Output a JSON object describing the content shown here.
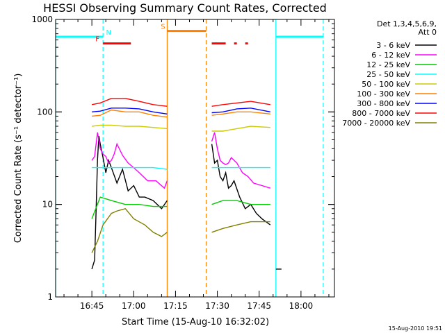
{
  "chart_data": {
    "type": "line",
    "title": "HESSI Observing Summary Count Rates, Corrected",
    "xlabel": "Start Time (15-Aug-10 16:32:02)",
    "ylabel": "Corrected Count Rate (s⁻¹ detector⁻¹)",
    "footer": "15-Aug-2010 19:51",
    "x_unit": "minutes after 16:32:02",
    "xlim": [
      0,
      100
    ],
    "ylim": [
      1,
      1000
    ],
    "yscale": "log",
    "x_ticks": [
      {
        "label": "16:45",
        "x": 13
      },
      {
        "label": "17:00",
        "x": 28
      },
      {
        "label": "17:15",
        "x": 43
      },
      {
        "label": "17:30",
        "x": 58
      },
      {
        "label": "17:45",
        "x": 73
      },
      {
        "label": "18:00",
        "x": 88
      }
    ],
    "y_ticks": [
      {
        "label": "1",
        "y": 1
      },
      {
        "label": "10",
        "y": 10
      },
      {
        "label": "100",
        "y": 100
      },
      {
        "label": "1000",
        "y": 1000
      }
    ],
    "legend_title": [
      "Det 1,3,4,5,6,9,",
      "Att 0"
    ],
    "legend_position": "right",
    "series": [
      {
        "name": "3 - 6 keV",
        "color": "#000000",
        "seg1": {
          "x": [
            13,
            14,
            14.5,
            15,
            15.5,
            16,
            17,
            18,
            19,
            20,
            22,
            24,
            26,
            28,
            30,
            32,
            35,
            38,
            40
          ],
          "y": [
            2,
            2.5,
            8,
            30,
            55,
            45,
            32,
            22,
            30,
            25,
            17,
            24,
            14,
            16,
            12,
            12,
            11,
            9,
            11
          ]
        },
        "seg2": {
          "x": [
            56,
            57,
            58,
            59,
            60,
            61,
            62,
            63,
            64,
            66,
            68,
            70,
            72,
            74,
            77
          ],
          "y": [
            45,
            28,
            30,
            20,
            18,
            22,
            15,
            16,
            18,
            12,
            9,
            10,
            8,
            7,
            6
          ]
        },
        "seg3": {
          "x": [
            79,
            80,
            81
          ],
          "y": [
            2,
            2,
            2
          ]
        }
      },
      {
        "name": "6 - 12 keV",
        "color": "#ff00ff",
        "seg1": {
          "x": [
            13,
            14,
            15,
            16,
            17,
            18,
            19,
            20,
            21,
            22,
            24,
            26,
            28,
            30,
            33,
            36,
            39,
            40
          ],
          "y": [
            30,
            33,
            60,
            40,
            35,
            33,
            28,
            30,
            35,
            45,
            34,
            28,
            25,
            22,
            18,
            18,
            15,
            18
          ]
        },
        "seg2": {
          "x": [
            56,
            57,
            58,
            59,
            60,
            61,
            62,
            63,
            65,
            67,
            69,
            71,
            74,
            77
          ],
          "y": [
            48,
            60,
            40,
            30,
            28,
            27,
            28,
            32,
            28,
            22,
            20,
            17,
            16,
            15
          ]
        }
      },
      {
        "name": "12 - 25 keV",
        "color": "#00cc00",
        "seg1": {
          "x": [
            13,
            16,
            20,
            25,
            30,
            35,
            40
          ],
          "y": [
            7,
            12,
            11,
            10,
            10,
            9.5,
            9.5
          ]
        },
        "seg2": {
          "x": [
            56,
            60,
            65,
            70,
            77
          ],
          "y": [
            10,
            11,
            11,
            10,
            10
          ]
        }
      },
      {
        "name": "25 - 50 keV",
        "color": "#00ffff",
        "seg1": {
          "x": [
            13,
            16,
            20,
            25,
            30,
            35,
            40
          ],
          "y": [
            25,
            25,
            25,
            25,
            25,
            25,
            24
          ]
        },
        "seg2": {
          "x": [
            56,
            60,
            65,
            70,
            77
          ],
          "y": [
            25,
            25,
            25,
            25,
            25
          ]
        }
      },
      {
        "name": "50 - 100 keV",
        "color": "#cccc00",
        "seg1": {
          "x": [
            13,
            16,
            20,
            25,
            30,
            35,
            40
          ],
          "y": [
            70,
            72,
            72,
            70,
            70,
            68,
            66
          ]
        },
        "seg2": {
          "x": [
            56,
            60,
            65,
            70,
            77
          ],
          "y": [
            62,
            62,
            66,
            70,
            68
          ]
        }
      },
      {
        "name": "100 - 300 keV",
        "color": "#ff8000",
        "seg1": {
          "x": [
            13,
            16,
            20,
            25,
            30,
            35,
            40
          ],
          "y": [
            90,
            92,
            105,
            100,
            100,
            92,
            88
          ]
        },
        "seg2": {
          "x": [
            56,
            60,
            65,
            70,
            77
          ],
          "y": [
            92,
            95,
            100,
            100,
            95
          ]
        }
      },
      {
        "name": "300 - 800 keV",
        "color": "#0000ff",
        "seg1": {
          "x": [
            13,
            16,
            20,
            25,
            30,
            35,
            40
          ],
          "y": [
            100,
            102,
            110,
            110,
            108,
            100,
            95
          ]
        },
        "seg2": {
          "x": [
            56,
            60,
            65,
            70,
            77
          ],
          "y": [
            98,
            100,
            108,
            110,
            100
          ]
        }
      },
      {
        "name": "800 - 7000 keV",
        "color": "#ff0000",
        "seg1": {
          "x": [
            13,
            16,
            20,
            25,
            30,
            35,
            40
          ],
          "y": [
            120,
            125,
            140,
            140,
            130,
            120,
            115
          ]
        },
        "seg2": {
          "x": [
            56,
            60,
            65,
            70,
            77
          ],
          "y": [
            115,
            120,
            125,
            130,
            120
          ]
        }
      },
      {
        "name": "7000 - 20000 keV",
        "color": "#808000",
        "seg1": {
          "x": [
            13,
            15,
            17,
            20,
            22,
            25,
            28,
            32,
            35,
            38,
            40
          ],
          "y": [
            3,
            4,
            6,
            8,
            8.5,
            9,
            7,
            6,
            5,
            4.5,
            5
          ]
        },
        "seg2": {
          "x": [
            56,
            60,
            65,
            70,
            74,
            77
          ],
          "y": [
            5,
            5.5,
            6,
            6.5,
            6.5,
            6.5
          ]
        }
      }
    ],
    "flags": [
      {
        "label": "N",
        "color": "#00ffff",
        "x_start": 0,
        "x_end": 17,
        "y": 650,
        "label_x": 19
      },
      {
        "label": "F",
        "color": "#ff0000",
        "x_start": 17,
        "x_end": 27,
        "y": 550,
        "label_x": 15
      },
      {
        "label": "S",
        "color": "#ff8000",
        "x_start": 40,
        "x_end": 54,
        "y": 750,
        "label_x": 38.5
      },
      {
        "label": "",
        "color": "#ff0000",
        "x_start": 56,
        "x_end": 61,
        "y": 550
      },
      {
        "label": "",
        "color": "#ff0000",
        "x_start": 64,
        "x_end": 65,
        "y": 550
      },
      {
        "label": "",
        "color": "#ff0000",
        "x_start": 68,
        "x_end": 69,
        "y": 550
      },
      {
        "label": "",
        "color": "#00ffff",
        "x_start": 79,
        "x_end": 96,
        "y": 650
      }
    ],
    "vlines": [
      {
        "x": 17,
        "color": "#00ffff",
        "dash": true
      },
      {
        "x": 40,
        "color": "#ff8000",
        "dash": false
      },
      {
        "x": 54,
        "color": "#ff8000",
        "dash": true
      },
      {
        "x": 79,
        "color": "#00ffff",
        "dash": false
      },
      {
        "x": 96,
        "color": "#00ffff",
        "dash": true
      },
      {
        "x": 0,
        "color": "#00ffff",
        "dash": false
      }
    ]
  }
}
